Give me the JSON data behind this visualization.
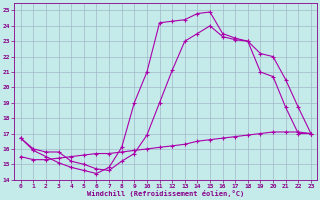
{
  "xlabel": "Windchill (Refroidissement éolien,°C)",
  "xlim": [
    -0.5,
    23.5
  ],
  "ylim": [
    14,
    25.5
  ],
  "xticks": [
    0,
    1,
    2,
    3,
    4,
    5,
    6,
    7,
    8,
    9,
    10,
    11,
    12,
    13,
    14,
    15,
    16,
    17,
    18,
    19,
    20,
    21,
    22,
    23
  ],
  "yticks": [
    14,
    15,
    16,
    17,
    18,
    19,
    20,
    21,
    22,
    23,
    24,
    25
  ],
  "bg_color": "#c5eaea",
  "grid_color": "#a0b8c8",
  "line_color": "#aa00aa",
  "line1_x": [
    0,
    1,
    2,
    3,
    4,
    5,
    6,
    7,
    8,
    9,
    10,
    11,
    12,
    13,
    14,
    15,
    16,
    17,
    18,
    19,
    20,
    21,
    22,
    23
  ],
  "line1_y": [
    16.7,
    15.9,
    15.5,
    15.1,
    14.8,
    14.6,
    14.4,
    14.8,
    16.1,
    19.0,
    21.0,
    24.2,
    24.3,
    24.4,
    24.8,
    24.9,
    23.5,
    23.2,
    23.0,
    21.0,
    20.7,
    18.7,
    17.0,
    17.0
  ],
  "line2_x": [
    0,
    1,
    2,
    3,
    4,
    5,
    6,
    7,
    8,
    9,
    10,
    11,
    12,
    13,
    14,
    15,
    16,
    17,
    18,
    19,
    20,
    21,
    22,
    23
  ],
  "line2_y": [
    16.7,
    16.0,
    15.8,
    15.8,
    15.2,
    15.0,
    14.7,
    14.6,
    15.2,
    15.7,
    16.9,
    19.0,
    21.1,
    23.0,
    23.5,
    24.0,
    23.3,
    23.1,
    23.0,
    22.2,
    22.0,
    20.5,
    18.7,
    17.0
  ],
  "line3_x": [
    0,
    1,
    2,
    3,
    4,
    5,
    6,
    7,
    8,
    9,
    10,
    11,
    12,
    13,
    14,
    15,
    16,
    17,
    18,
    19,
    20,
    21,
    22,
    23
  ],
  "line3_y": [
    15.5,
    15.3,
    15.3,
    15.4,
    15.5,
    15.6,
    15.7,
    15.7,
    15.8,
    15.9,
    16.0,
    16.1,
    16.2,
    16.3,
    16.5,
    16.6,
    16.7,
    16.8,
    16.9,
    17.0,
    17.1,
    17.1,
    17.1,
    17.0
  ]
}
